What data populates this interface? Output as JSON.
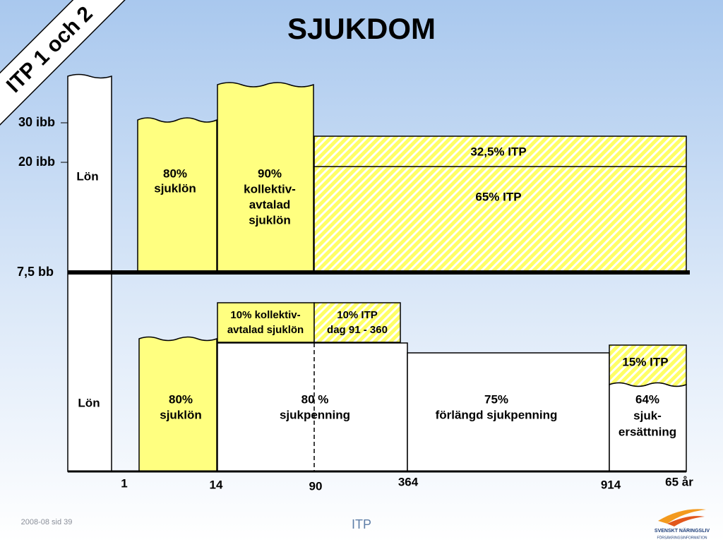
{
  "title": "SJUKDOM",
  "banner": "ITP 1 och 2",
  "levels": [
    "30 ibb",
    "20 ibb",
    "7,5 bb"
  ],
  "upper": {
    "salary": "Lön",
    "sick_pay": [
      "80%",
      "sjuklön"
    ],
    "agreement_sick_pay": [
      "90%",
      "kollektiv-",
      "avtalad",
      "sjuklön"
    ],
    "itp_high": "32,5% ITP",
    "itp_low": "65% ITP"
  },
  "lower": {
    "agreement_sick_pay": [
      "10% kollektiv-",
      "avtalad sjuklön"
    ],
    "itp": [
      "10% ITP",
      "dag 91 - 360"
    ],
    "salary": "Lön",
    "sick_pay": [
      "80%",
      "sjuklön"
    ],
    "sickness_benefit": [
      "80 %",
      "sjukpenning"
    ],
    "extended_benefit": [
      "75%",
      "förlängd sjukpenning"
    ],
    "itp_15": "15% ITP",
    "compensation": [
      "64%",
      "sjuk-",
      "ersättning"
    ]
  },
  "days": [
    "1",
    "14",
    "90",
    "364",
    "914",
    "65 år"
  ],
  "footer": {
    "date": "2008-08 sid 39",
    "topic": "ITP",
    "logo": [
      "SVENSKT NÄRINGSLIV",
      "FÖRSÄKRINGSINFORMATION"
    ]
  }
}
